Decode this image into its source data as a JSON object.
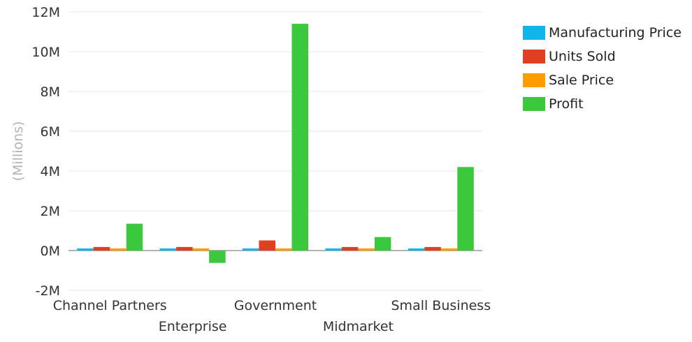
{
  "chart_data": {
    "type": "bar",
    "ylabel": "(Millions)",
    "xlabel": "",
    "ylim": [
      -2000000,
      12000000
    ],
    "yticks": [
      {
        "value": 12000000,
        "label": "12M"
      },
      {
        "value": 10000000,
        "label": "10M"
      },
      {
        "value": 8000000,
        "label": "8M"
      },
      {
        "value": 6000000,
        "label": "6M"
      },
      {
        "value": 4000000,
        "label": "4M"
      },
      {
        "value": 2000000,
        "label": "2M"
      },
      {
        "value": 0,
        "label": "0M"
      },
      {
        "value": -2000000,
        "label": "-2M"
      }
    ],
    "categories": [
      "Channel Partners",
      "Enterprise",
      "Government",
      "Midmarket",
      "Small Business"
    ],
    "series": [
      {
        "name": "Manufacturing Price",
        "color": "#12b5ea",
        "values": [
          110000,
          110000,
          110000,
          110000,
          110000
        ]
      },
      {
        "name": "Units Sold",
        "color": "#e04021",
        "values": [
          180000,
          180000,
          510000,
          180000,
          180000
        ]
      },
      {
        "name": "Sale Price",
        "color": "#ff9c00",
        "values": [
          110000,
          110000,
          110000,
          110000,
          110000
        ]
      },
      {
        "name": "Profit",
        "color": "#3cc83c",
        "values": [
          1350000,
          -620000,
          11400000,
          680000,
          4200000
        ]
      }
    ],
    "grid": true,
    "legend_position": "right"
  }
}
